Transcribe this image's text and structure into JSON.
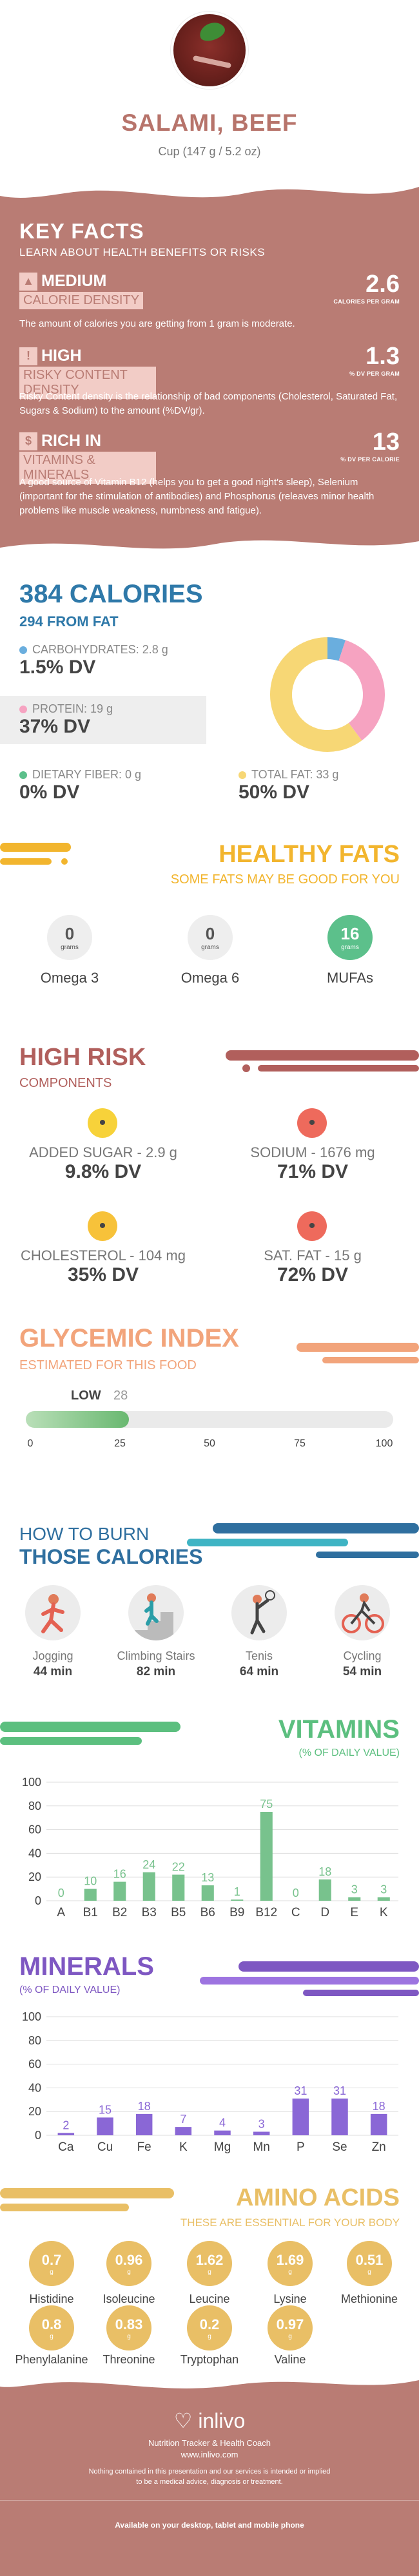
{
  "header": {
    "title": "SALAMI, BEEF",
    "serving": "Cup (147 g / 5.2 oz)",
    "image_icon": "food-photo"
  },
  "key_facts": {
    "title": "KEY FACTS",
    "subtitle": "LEARN ABOUT HEALTH BENEFITS OR RISKS",
    "items": [
      {
        "level": "MEDIUM",
        "label": "CALORIE DENSITY",
        "icon": "flame-icon",
        "value": "2.6",
        "unit": "CALORIES PER GRAM",
        "desc": "The amount of calories you are getting from 1 gram is moderate."
      },
      {
        "level": "HIGH",
        "label": "RISKY CONTENT DENSITY",
        "icon": "warning-icon",
        "value": "1.3",
        "unit": "% DV PER GRAM",
        "desc": "Risky Content density is the relationship of bad components (Cholesterol, Saturated Fat, Sugars & Sodium) to the amount (%DV/gr)."
      },
      {
        "level": "RICH  IN",
        "label": "VITAMINS & MINERALS",
        "icon": "dollar-icon",
        "value": "13",
        "unit": "% DV PER CALORIE",
        "desc": "A good source of Vitamin B12 (helps you to get a good night's sleep), Selenium (important for the stimulation of antibodies) and Phosphorus (releaves minor health problems like muscle weakness, numbness and fatigue)."
      }
    ]
  },
  "calories": {
    "title": "384 CALORIES",
    "subtitle": "294 FROM FAT",
    "macros": [
      {
        "label": "CARBOHYDRATES: 2.8 g",
        "dv": "1.5% DV",
        "color": "#6aaede"
      },
      {
        "label": "PROTEIN: 19 g",
        "dv": "37% DV",
        "color": "#f6a3c1"
      },
      {
        "label": "DIETARY FIBER: 0 g",
        "dv": "0% DV",
        "color": "#5cc08b"
      },
      {
        "label": "TOTAL FAT: 33 g",
        "dv": "50% DV",
        "color": "#f7d775"
      }
    ]
  },
  "chart_data": [
    {
      "type": "pie",
      "title": "",
      "categories": [
        "Carbohydrates",
        "Protein",
        "Total Fat"
      ],
      "values": [
        2.8,
        19,
        33
      ],
      "colors": [
        "#6aaede",
        "#f6a3c1",
        "#f7d775"
      ]
    },
    {
      "type": "bar",
      "title": "VITAMINS",
      "subtitle": "(% OF DAILY VALUE)",
      "categories": [
        "A",
        "B1",
        "B2",
        "B3",
        "B5",
        "B6",
        "B9",
        "B12",
        "C",
        "D",
        "E",
        "K"
      ],
      "values": [
        0,
        10,
        16,
        24,
        22,
        13,
        1,
        75,
        0,
        18,
        3,
        3
      ],
      "ylim": [
        0,
        100
      ],
      "yticks": [
        0,
        20,
        40,
        60,
        80,
        100
      ],
      "grid": true
    },
    {
      "type": "bar",
      "title": "MINERALS",
      "subtitle": "(% OF DAILY VALUE)",
      "categories": [
        "Ca",
        "Cu",
        "Fe",
        "K",
        "Mg",
        "Mn",
        "P",
        "Se",
        "Zn"
      ],
      "values": [
        2,
        15,
        18,
        7,
        4,
        3,
        31,
        31,
        18
      ],
      "ylim": [
        0,
        100
      ],
      "yticks": [
        0,
        20,
        40,
        60,
        80,
        100
      ],
      "grid": true
    }
  ],
  "healthy_fats": {
    "title": "HEALTHY FATS",
    "subtitle": "SOME FATS MAY BE GOOD FOR YOU",
    "unit": "grams",
    "items": [
      {
        "label": "Omega 3",
        "value": "0",
        "highlight": false
      },
      {
        "label": "Omega 6",
        "value": "0",
        "highlight": false
      },
      {
        "label": "MUFAs",
        "value": "16",
        "highlight": true
      }
    ]
  },
  "high_risk": {
    "title": "HIGH RISK",
    "subtitle": "COMPONENTS",
    "items": [
      {
        "label": "ADDED SUGAR - 2.9 g",
        "dv": "9.8% DV",
        "face": "neutral",
        "color": "#f7d23a"
      },
      {
        "label": "SODIUM - 1676 mg",
        "dv": "71% DV",
        "face": "sad",
        "color": "#ee6a5c"
      },
      {
        "label": "CHOLESTEROL - 104 mg",
        "dv": "35% DV",
        "face": "neutral",
        "color": "#f7c23a"
      },
      {
        "label": "SAT. FAT - 15 g",
        "dv": "72% DV",
        "face": "sad",
        "color": "#ee6a5c"
      }
    ]
  },
  "glycemic": {
    "title": "GLYCEMIC INDEX",
    "subtitle": "ESTIMATED FOR THIS FOOD",
    "level": "LOW",
    "value": "28",
    "fraction": 0.28,
    "ticks": [
      "0",
      "25",
      "50",
      "75",
      "100"
    ]
  },
  "burn": {
    "title_top": "HOW TO BURN",
    "title_bottom": "THOSE CALORIES",
    "activities": [
      {
        "label": "Jogging",
        "time": "44 min",
        "icon": "jogging-icon"
      },
      {
        "label": "Climbing Stairs",
        "time": "82 min",
        "icon": "stairs-icon"
      },
      {
        "label": "Tenis",
        "time": "64 min",
        "icon": "tennis-icon"
      },
      {
        "label": "Cycling",
        "time": "54 min",
        "icon": "cycling-icon"
      }
    ]
  },
  "amino": {
    "title": "AMINO ACIDS",
    "subtitle": "THESE ARE ESSENTIAL FOR YOUR BODY",
    "unit": "g",
    "items": [
      {
        "label": "Histidine",
        "value": "0.7"
      },
      {
        "label": "Isoleucine",
        "value": "0.96"
      },
      {
        "label": "Leucine",
        "value": "1.62"
      },
      {
        "label": "Lysine",
        "value": "1.69"
      },
      {
        "label": "Methionine",
        "value": "0.51"
      },
      {
        "label": "Phenylalanine",
        "value": "0.8"
      },
      {
        "label": "Threonine",
        "value": "0.83"
      },
      {
        "label": "Tryptophan",
        "value": "0.2"
      },
      {
        "label": "Valine",
        "value": "0.97"
      }
    ]
  },
  "footer": {
    "brand": "inlivo",
    "tagline": "Nutrition Tracker & Health Coach",
    "url": "www.inlivo.com",
    "disclaimer_1": "Nothing contained in this presentation and our services is intended or implied",
    "disclaimer_2": "to be a medical advice, diagnosis or treatment.",
    "available": "Available on your desktop, tablet and mobile phone"
  }
}
